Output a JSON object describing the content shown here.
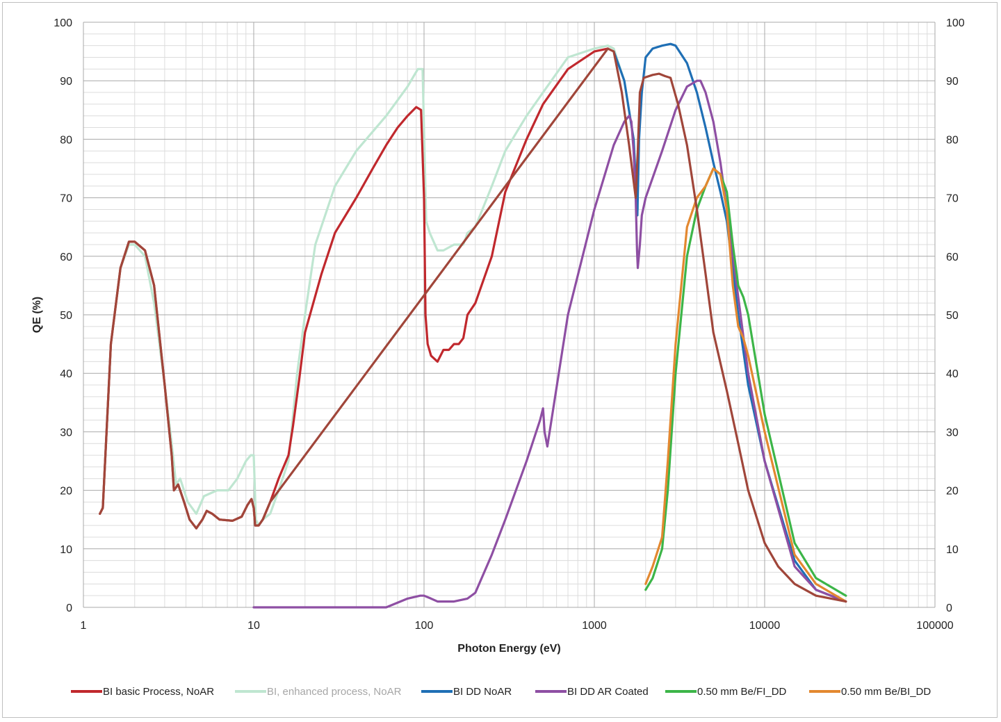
{
  "chart_data": {
    "type": "line",
    "title": "",
    "xlabel": "Photon Energy (eV)",
    "ylabel": "QE (%)",
    "x_scale": "log",
    "xlim": [
      1,
      100000
    ],
    "ylim": [
      0,
      100
    ],
    "grid": true,
    "legend_position": "bottom",
    "x_ticks": [
      1,
      10,
      100,
      1000,
      10000,
      100000
    ],
    "x_tick_labels": [
      "1",
      "10",
      "100",
      "1000",
      "10000",
      "100000"
    ],
    "y_ticks": [
      0,
      10,
      20,
      30,
      40,
      50,
      60,
      70,
      80,
      90,
      100
    ],
    "y_tick_labels": [
      "0",
      "10",
      "20",
      "30",
      "40",
      "50",
      "60",
      "70",
      "80",
      "90",
      "100"
    ],
    "series": [
      {
        "name": "BI, enhanced process, NoAR",
        "color": "#bfe6d1",
        "x": [
          1.25,
          1.3,
          1.45,
          1.65,
          1.85,
          2.0,
          2.3,
          2.6,
          3.0,
          3.3,
          3.5,
          3.7,
          4.1,
          4.6,
          5.1,
          6.1,
          7.1,
          8.0,
          9.0,
          9.6,
          10.0,
          10.3,
          10.7,
          11.3,
          12.5,
          14.0,
          16.0,
          18.0,
          20.0,
          23.0,
          30.0,
          40.0,
          60.0,
          80.0,
          92.0,
          98.0,
          103.0,
          108.0,
          120.0,
          130.0,
          150.0,
          170.0,
          180.0,
          200.0,
          250.0,
          300.0,
          400.0,
          500.0,
          700.0,
          1000.0,
          1200.0,
          1300.0,
          1500.0,
          1700.0,
          1800.0
        ],
        "y": [
          16,
          17,
          45,
          58,
          62,
          62,
          60,
          52,
          38,
          28,
          21,
          22,
          18,
          16,
          19,
          20,
          20,
          22,
          25,
          26,
          26,
          15,
          14,
          15,
          16,
          20,
          25,
          40,
          50,
          62,
          72,
          78,
          84,
          89,
          92,
          92,
          66,
          64,
          61,
          61,
          62,
          62,
          64,
          65,
          72,
          78,
          84,
          88,
          94,
          95.5,
          96,
          95.5,
          90,
          80,
          68
        ]
      },
      {
        "name": "BI basic Process, NoAR",
        "color": "#c0282d",
        "x": [
          1.25,
          1.3,
          1.45,
          1.65,
          1.85,
          2.0,
          2.3,
          2.6,
          3.0,
          3.3,
          3.4,
          3.6,
          3.9,
          4.2,
          4.6,
          5.0,
          5.3,
          5.7,
          6.3,
          7.5,
          8.5,
          9.2,
          9.7,
          10.0,
          10.2,
          10.7,
          11.3,
          12.5,
          14.0,
          16.0,
          17.0,
          18.5,
          20.0,
          25.0,
          30.0,
          40.0,
          50.0,
          60.0,
          70.0,
          80.0,
          90.0,
          96.0,
          100.0,
          102.0,
          105.0,
          110.0,
          120.0,
          130.0,
          140.0,
          150.0,
          160.0,
          170.0,
          180.0,
          200.0,
          250.0,
          300.0,
          400.0,
          500.0,
          700.0,
          1000.0,
          1200.0
        ],
        "y": [
          16,
          17,
          45,
          58,
          62.5,
          62.5,
          61,
          55,
          38,
          26,
          20,
          21,
          18,
          15,
          13.5,
          15,
          16.5,
          16,
          15,
          14.8,
          15.5,
          17.5,
          18.5,
          17,
          14,
          14,
          15,
          18,
          22,
          26,
          31,
          39,
          47,
          57,
          64,
          70,
          75,
          79,
          82,
          84,
          85.5,
          85,
          70,
          50,
          45,
          43,
          42,
          44,
          44,
          45,
          45,
          46,
          50,
          52,
          60,
          71,
          80,
          86,
          92,
          95,
          95.5
        ]
      },
      {
        "name": "BI DD NoAR",
        "color": "#1f6fb5",
        "x": [
          1300,
          1500,
          1700,
          1790,
          1830,
          1900,
          2000,
          2200,
          2500,
          2800,
          3000,
          3500,
          4000,
          4500,
          5000,
          5500,
          6000,
          7000,
          8000,
          10000,
          15000,
          20000,
          30000
        ],
        "y": [
          95,
          90,
          80,
          67,
          80,
          88,
          94,
          95.5,
          96,
          96.3,
          96,
          93,
          88,
          82,
          76,
          71,
          66,
          50,
          38,
          25,
          8,
          3,
          1
        ]
      },
      {
        "name": "BI DD AR Coated",
        "color": "#8e4fa3",
        "x": [
          10,
          20,
          30,
          50,
          60,
          80,
          95,
          100,
          110,
          120,
          150,
          180,
          200,
          250,
          300,
          400,
          480,
          500,
          510,
          530,
          560,
          700,
          1000,
          1300,
          1500,
          1600,
          1650,
          1700,
          1750,
          1780,
          1800,
          1850,
          1900,
          2000,
          2500,
          3000,
          3500,
          4000,
          4200,
          4500,
          5000,
          5500,
          6000,
          7000,
          8000,
          10000,
          15000,
          20000,
          30000
        ],
        "y": [
          0,
          0,
          0,
          0,
          0,
          1.5,
          2,
          2,
          1.5,
          1,
          1,
          1.5,
          2.5,
          9,
          15,
          25,
          32,
          34,
          30,
          27.5,
          32,
          50,
          68,
          79,
          83,
          84,
          83,
          78,
          70,
          61,
          58,
          62,
          67,
          70,
          78,
          85,
          89,
          90,
          90,
          88,
          83,
          76,
          68,
          53,
          40,
          25,
          7,
          3,
          1
        ]
      },
      {
        "name": "0.50 mm Be/FI_DD",
        "color": "#3cb548",
        "x": [
          2000,
          2200,
          2500,
          2700,
          3000,
          3500,
          4000,
          4500,
          5000,
          5500,
          6000,
          6500,
          7000,
          7500,
          8000,
          10000,
          15000,
          20000,
          30000
        ],
        "y": [
          3,
          5,
          10,
          20,
          40,
          60,
          68,
          72,
          75,
          74,
          71,
          62,
          55,
          53,
          50,
          33,
          11,
          5,
          2
        ]
      },
      {
        "name": "0.50 mm Be/BI_DD",
        "color": "#e38830",
        "x": [
          2000,
          2200,
          2500,
          2700,
          3000,
          3500,
          4000,
          4500,
          5000,
          5500,
          6000,
          6500,
          7000,
          7500,
          8000,
          10000,
          15000,
          20000,
          30000
        ],
        "y": [
          4,
          7,
          12,
          25,
          45,
          65,
          70,
          72,
          75,
          74,
          68,
          55,
          48,
          46,
          43,
          30,
          9,
          4,
          1
        ]
      },
      {
        "name": "",
        "color": "#a0463a",
        "x": [
          1.25,
          1.3,
          1.45,
          1.65,
          1.85,
          2.0,
          2.3,
          2.6,
          3.0,
          3.3,
          3.4,
          3.6,
          3.9,
          4.2,
          4.6,
          5.0,
          5.3,
          5.7,
          6.3,
          7.5,
          8.5,
          9.2,
          9.7,
          10.0,
          10.2,
          10.7,
          11.3,
          12.5,
          1200,
          1300,
          1450,
          1600,
          1750,
          1800,
          1850,
          1950,
          2200,
          2400,
          2600,
          2800,
          3100,
          3500,
          4000,
          4500,
          5000,
          6000,
          7000,
          8000,
          10000,
          12000,
          15000,
          20000,
          30000
        ],
        "y": [
          16,
          17,
          45,
          58,
          62.5,
          62.5,
          61,
          55,
          38,
          26,
          20,
          21,
          18,
          15,
          13.5,
          15,
          16.5,
          16,
          15,
          14.8,
          15.5,
          17.5,
          18.5,
          17,
          14,
          14,
          15,
          18,
          95.5,
          95,
          88,
          79,
          70,
          78,
          88,
          90.5,
          91,
          91.2,
          90.8,
          90.5,
          86,
          79,
          68,
          57,
          47,
          37,
          28,
          20,
          11,
          7,
          4,
          2,
          1
        ]
      }
    ]
  },
  "legend": [
    {
      "label": "BI basic Process, NoAR",
      "color": "#c0282d",
      "text_color": "#222222"
    },
    {
      "label": "BI, enhanced process, NoAR",
      "color": "#bfe6d1",
      "text_color": "#a6a6a6"
    },
    {
      "label": "BI DD NoAR",
      "color": "#1f6fb5",
      "text_color": "#222222"
    },
    {
      "label": "BI DD AR Coated",
      "color": "#8e4fa3",
      "text_color": "#222222"
    },
    {
      "label": "0.50 mm Be/FI_DD",
      "color": "#3cb548",
      "text_color": "#222222"
    },
    {
      "label": "0.50 mm Be/BI_DD",
      "color": "#e38830",
      "text_color": "#222222"
    }
  ]
}
